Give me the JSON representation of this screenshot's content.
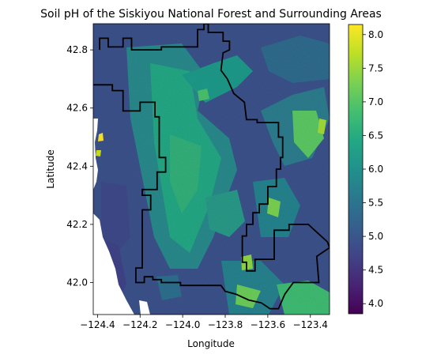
{
  "chart_data": {
    "type": "heatmap",
    "title": "Soil pH of the Siskiyou National Forest and Surrounding Areas",
    "xlabel": "Longitude",
    "ylabel": "Latitude",
    "xlim": [
      -124.42,
      -123.31
    ],
    "ylim": [
      41.89,
      42.89
    ],
    "x_ticks": [
      -124.4,
      -124.2,
      -124.0,
      -123.8,
      -123.6,
      -123.4
    ],
    "x_tick_labels": [
      "−124.4",
      "−124.2",
      "−124.0",
      "−123.8",
      "−123.6",
      "−123.4"
    ],
    "y_ticks": [
      42.0,
      42.2,
      42.4,
      42.6,
      42.8
    ],
    "y_tick_labels": [
      "42.0",
      "42.2",
      "42.4",
      "42.6",
      "42.8"
    ],
    "colorbar": {
      "colormap": "viridis",
      "range": [
        3.85,
        8.15
      ],
      "ticks": [
        4.0,
        4.5,
        5.0,
        5.5,
        6.0,
        6.5,
        7.0,
        7.5,
        8.0
      ],
      "tick_labels": [
        "4.0",
        "4.5",
        "5.0",
        "5.5",
        "6.0",
        "6.5",
        "7.0",
        "7.5",
        "8.0"
      ]
    },
    "grid": false,
    "overlay": "Siskiyou National Forest boundary (black outline)",
    "boundary": [
      [
        -124.39,
        42.8
      ],
      [
        -124.39,
        42.84
      ],
      [
        -124.35,
        42.84
      ],
      [
        -124.35,
        42.81
      ],
      [
        -124.28,
        42.81
      ],
      [
        -124.28,
        42.84
      ],
      [
        -124.24,
        42.84
      ],
      [
        -124.24,
        42.8
      ],
      [
        -124.1,
        42.8
      ],
      [
        -124.1,
        42.81
      ],
      [
        -123.93,
        42.81
      ],
      [
        -123.93,
        42.87
      ],
      [
        -123.9,
        42.87
      ],
      [
        -123.9,
        42.89
      ],
      [
        -123.88,
        42.89
      ],
      [
        -123.88,
        42.86
      ],
      [
        -123.81,
        42.86
      ],
      [
        -123.81,
        42.83
      ],
      [
        -123.78,
        42.83
      ],
      [
        -123.78,
        42.8
      ],
      [
        -123.81,
        42.79
      ],
      [
        -123.82,
        42.73
      ],
      [
        -123.79,
        42.7
      ],
      [
        -123.76,
        42.65
      ],
      [
        -123.71,
        42.62
      ],
      [
        -123.7,
        42.56
      ],
      [
        -123.65,
        42.56
      ],
      [
        -123.65,
        42.55
      ],
      [
        -123.55,
        42.55
      ],
      [
        -123.55,
        42.5
      ],
      [
        -123.53,
        42.5
      ],
      [
        -123.53,
        42.43
      ],
      [
        -123.54,
        42.43
      ],
      [
        -123.54,
        42.39
      ],
      [
        -123.56,
        42.39
      ],
      [
        -123.56,
        42.33
      ],
      [
        -123.6,
        42.33
      ],
      [
        -123.6,
        42.27
      ],
      [
        -123.64,
        42.27
      ],
      [
        -123.64,
        42.24
      ],
      [
        -123.67,
        42.24
      ],
      [
        -123.67,
        42.2
      ],
      [
        -123.7,
        42.2
      ],
      [
        -123.7,
        42.16
      ],
      [
        -123.72,
        42.16
      ],
      [
        -123.72,
        42.07
      ],
      [
        -123.7,
        42.07
      ],
      [
        -123.7,
        42.04
      ],
      [
        -123.66,
        42.04
      ],
      [
        -123.66,
        42.08
      ],
      [
        -123.57,
        42.08
      ],
      [
        -123.57,
        42.18
      ],
      [
        -123.5,
        42.18
      ],
      [
        -123.5,
        42.2
      ],
      [
        -123.41,
        42.2
      ],
      [
        -123.38,
        42.18
      ],
      [
        -123.32,
        42.14
      ],
      [
        -123.31,
        42.12
      ],
      [
        -123.37,
        42.09
      ],
      [
        -123.36,
        42.0
      ],
      [
        -123.48,
        42.0
      ],
      [
        -123.52,
        41.96
      ],
      [
        -123.55,
        41.91
      ],
      [
        -123.59,
        41.91
      ],
      [
        -123.63,
        41.93
      ],
      [
        -123.69,
        41.94
      ],
      [
        -123.75,
        41.96
      ],
      [
        -123.8,
        41.97
      ],
      [
        -123.82,
        41.99
      ],
      [
        -124.01,
        41.99
      ],
      [
        -124.01,
        42.0
      ],
      [
        -124.1,
        42.0
      ],
      [
        -124.1,
        42.01
      ],
      [
        -124.14,
        42.01
      ],
      [
        -124.14,
        42.02
      ],
      [
        -124.18,
        42.02
      ],
      [
        -124.18,
        42.0
      ],
      [
        -124.22,
        42.0
      ],
      [
        -124.22,
        42.05
      ],
      [
        -124.19,
        42.05
      ],
      [
        -124.19,
        42.25
      ],
      [
        -124.15,
        42.25
      ],
      [
        -124.15,
        42.3
      ],
      [
        -124.19,
        42.3
      ],
      [
        -124.19,
        42.32
      ],
      [
        -124.12,
        42.32
      ],
      [
        -124.12,
        42.38
      ],
      [
        -124.08,
        42.38
      ],
      [
        -124.08,
        42.43
      ],
      [
        -124.11,
        42.43
      ],
      [
        -124.11,
        42.57
      ],
      [
        -124.13,
        42.57
      ],
      [
        -124.13,
        42.62
      ],
      [
        -124.2,
        42.62
      ],
      [
        -124.2,
        42.59
      ],
      [
        -124.28,
        42.59
      ],
      [
        -124.28,
        42.66
      ],
      [
        -124.33,
        42.66
      ],
      [
        -124.33,
        42.68
      ],
      [
        -124.42,
        42.68
      ]
    ]
  }
}
